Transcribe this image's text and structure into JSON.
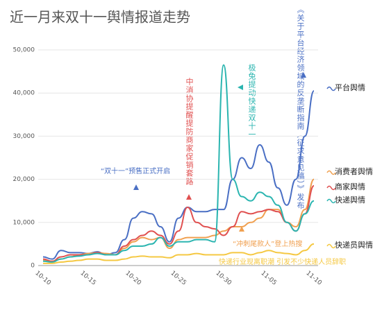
{
  "chart_data": {
    "type": "line",
    "title": "近一月来双十一舆情报道走势",
    "categories": [
      "10-10",
      null,
      null,
      null,
      null,
      "10-15",
      null,
      null,
      null,
      null,
      "10-20",
      null,
      null,
      null,
      null,
      "10-25",
      null,
      null,
      null,
      null,
      "10-30",
      null,
      null,
      null,
      null,
      "11-05",
      null,
      null,
      null,
      null,
      "11-10"
    ],
    "series": [
      {
        "name": "平台舆情",
        "color": "#4a6fc4",
        "values": [
          2000,
          1500,
          3500,
          3000,
          3000,
          2800,
          3200,
          2500,
          3000,
          6000,
          11000,
          12500,
          12000,
          9000,
          5500,
          11000,
          13500,
          12500,
          12500,
          13000,
          13000,
          20000,
          25000,
          22500,
          28000,
          24000,
          18000,
          14000,
          20000,
          30000,
          40500
        ]
      },
      {
        "name": "消费者舆情",
        "color": "#f0a050",
        "values": [
          1200,
          1000,
          1500,
          2000,
          2500,
          2800,
          3000,
          2800,
          2500,
          4000,
          5500,
          6500,
          6000,
          6500,
          4000,
          6000,
          6500,
          6500,
          6500,
          7000,
          8000,
          9000,
          9000,
          10000,
          11000,
          13000,
          13000,
          10000,
          9000,
          13000,
          20000
        ]
      },
      {
        "name": "商家舆情",
        "color": "#e05050",
        "values": [
          1500,
          1000,
          2000,
          2500,
          2500,
          2500,
          3000,
          2500,
          2500,
          4500,
          6000,
          7000,
          8000,
          7000,
          5000,
          8000,
          13500,
          10000,
          9000,
          8500,
          7000,
          9000,
          12500,
          12000,
          12500,
          13000,
          12500,
          10000,
          8000,
          12000,
          18500
        ]
      },
      {
        "name": "快递舆情",
        "color": "#2bb5b0",
        "values": [
          1000,
          800,
          1500,
          2000,
          2200,
          2500,
          2800,
          2500,
          2500,
          3500,
          4500,
          4500,
          5000,
          6500,
          4500,
          5500,
          5500,
          6000,
          6000,
          5500,
          46500,
          20000,
          16000,
          15000,
          17000,
          16000,
          14000,
          10000,
          8000,
          12000,
          15000
        ]
      },
      {
        "name": "快递员舆情",
        "color": "#f5c842",
        "values": [
          500,
          500,
          800,
          1000,
          1200,
          1500,
          1500,
          1200,
          1200,
          1500,
          2000,
          2200,
          2000,
          2000,
          1800,
          2500,
          2500,
          2800,
          2500,
          2500,
          2500,
          3000,
          3000,
          2500,
          3000,
          3500,
          3000,
          2800,
          2500,
          3500,
          5000
        ]
      }
    ],
    "annotations": [
      "“双十一”预售正式开启",
      "中消协提醒提防商家促销套路",
      "极兔提动快递双十一",
      "《关于平台经济领域的反垄断指南（征求意见稿）》发布",
      "“冲刺尾款人”登上热搜",
      "快递行业现离职潮 引发不少快递人员辞职"
    ],
    "ylim": [
      0,
      50000
    ],
    "yticks": [
      0,
      {
        "value": 10000,
        "label": "10,000"
      },
      {
        "value": 20000,
        "label": "20,000"
      },
      {
        "value": 30000,
        "label": "30,000"
      },
      {
        "value": 40000,
        "label": "40,000"
      },
      {
        "value": 50000,
        "label": "50,000"
      }
    ],
    "grid": true
  }
}
